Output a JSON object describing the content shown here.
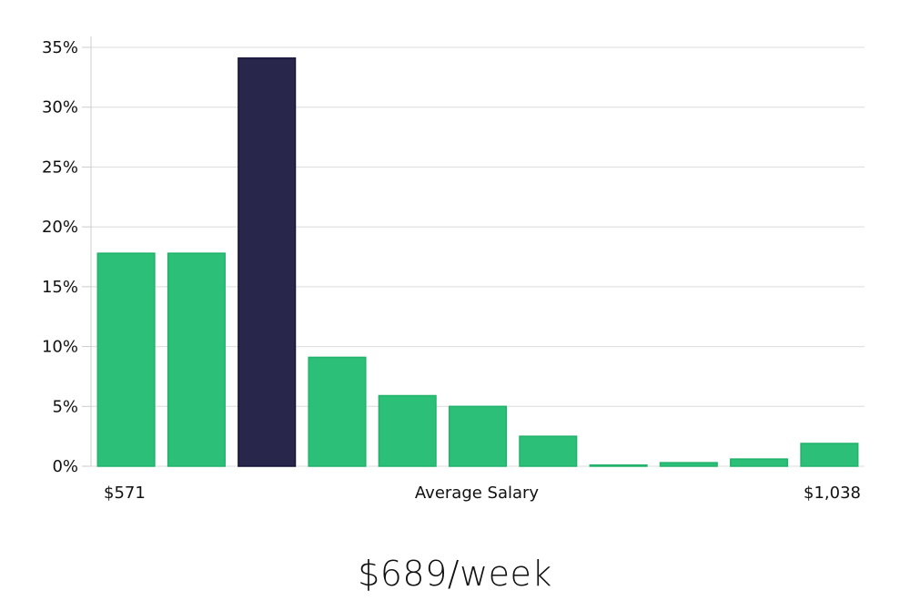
{
  "chart_data": {
    "type": "bar",
    "title": "",
    "xlabel": "Average Salary",
    "ylabel": "",
    "x_min_label": "$571",
    "x_max_label": "$1,038",
    "y_ticks": [
      "0%",
      "5%",
      "10%",
      "15%",
      "20%",
      "25%",
      "30%",
      "35%"
    ],
    "ylim": [
      0,
      35
    ],
    "grid": true,
    "values": [
      17.8,
      17.8,
      34.1,
      9.1,
      5.9,
      5.0,
      2.5,
      0.1,
      0.3,
      0.6,
      1.9
    ],
    "highlight_index": 2,
    "colors": {
      "bar": "#2bbf77",
      "bar_stroke": "#22b26b",
      "highlight": "#28264a",
      "highlight_stroke": "#15143a",
      "grid": "#dcdcdc",
      "axis": "#cccccc"
    }
  },
  "summary": {
    "salary_text": "$689/week"
  }
}
